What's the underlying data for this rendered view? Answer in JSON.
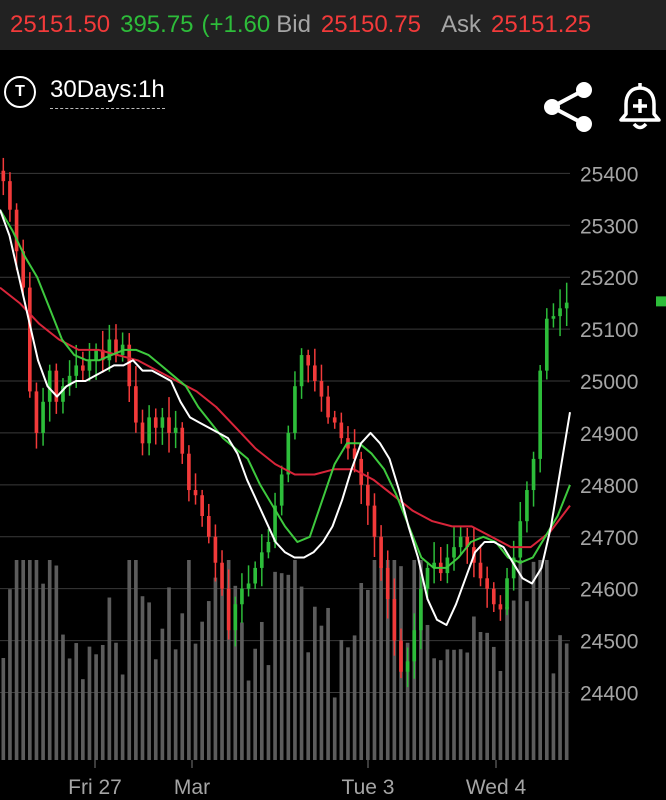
{
  "quote": {
    "last": "25151.50",
    "change": "395.75",
    "change_pct": "(+1.60",
    "bid_label": "Bid",
    "bid": "25150.75",
    "ask_label": "Ask",
    "ask": "25151.25"
  },
  "timeframe": {
    "icon_letter": "T",
    "label": "30Days:1h"
  },
  "icons": {
    "share": "share-icon",
    "alert": "bell-plus-icon"
  },
  "colors": {
    "up": "#2dbd3a",
    "down": "#f23a3a",
    "ma_fast": "#ffffff",
    "ma_mid": "#3ec93e",
    "ma_slow": "#d9253a",
    "volume": "#5c5c5c",
    "grid": "#3a3a3a"
  },
  "chart_data": {
    "type": "candlestick",
    "y_ticks": [
      24400,
      24500,
      24600,
      24700,
      24800,
      24900,
      25000,
      25100,
      25200,
      25300,
      25400
    ],
    "ylim": [
      24270,
      25445
    ],
    "x_ticks": [
      "Fri 27",
      "Mar",
      "Tue 3",
      "Wed 4"
    ],
    "grid": true,
    "last_price": 25151.5,
    "close": [
      25385,
      25330,
      25250,
      25180,
      24980,
      24900,
      24960,
      25020,
      24960,
      24990,
      25010,
      25030,
      25020,
      25040,
      25060,
      25040,
      25080,
      25050,
      25070,
      24990,
      24920,
      24880,
      24930,
      24910,
      24930,
      24900,
      24910,
      24860,
      24790,
      24780,
      24740,
      24700,
      24650,
      24600,
      24520,
      24570,
      24600,
      24610,
      24640,
      24670,
      24690,
      24760,
      24820,
      24900,
      24990,
      25050,
      25030,
      25000,
      24970,
      24930,
      24920,
      24890,
      24870,
      24850,
      24800,
      24760,
      24700,
      24640,
      24580,
      24500,
      24440,
      24460,
      24520,
      24600,
      24640,
      24650,
      24630,
      24660,
      24680,
      24700,
      24680,
      24650,
      24620,
      24600,
      24570,
      24560,
      24620,
      24660,
      24730,
      24790,
      24850,
      25020,
      25120,
      25125,
      25140,
      25151
    ],
    "ma_fast": [
      25330,
      25280,
      25200,
      25120,
      25040,
      24990,
      24970,
      24990,
      25000,
      25000,
      25010,
      25020,
      25030,
      25030,
      25040,
      25020,
      25020,
      25010,
      25000,
      24960,
      24930,
      24920,
      24910,
      24900,
      24890,
      24860,
      24810,
      24770,
      24730,
      24690,
      24670,
      24660,
      24660,
      24670,
      24690,
      24720,
      24770,
      24830,
      24880,
      24900,
      24880,
      24850,
      24790,
      24720,
      24660,
      24580,
      24540,
      24530,
      24570,
      24620,
      24670,
      24690,
      24690,
      24680,
      24650,
      24620,
      24610,
      24640,
      24720,
      24830,
      24940
    ],
    "ma_mid": [
      25330,
      25290,
      25240,
      25200,
      25140,
      25080,
      25050,
      25040,
      25040,
      25050,
      25060,
      25060,
      25050,
      25030,
      25010,
      24990,
      24950,
      24920,
      24890,
      24870,
      24850,
      24800,
      24760,
      24720,
      24690,
      24700,
      24770,
      24840,
      24880,
      24880,
      24860,
      24830,
      24780,
      24720,
      24660,
      24640,
      24640,
      24660,
      24690,
      24700,
      24690,
      24660,
      24650,
      24660,
      24700,
      24740,
      24800
    ],
    "ma_slow": [
      25180,
      25150,
      25110,
      25080,
      25060,
      25060,
      25050,
      25040,
      25020,
      25000,
      24980,
      24950,
      24910,
      24870,
      24840,
      24820,
      24820,
      24830,
      24830,
      24810,
      24780,
      24750,
      24730,
      24720,
      24720,
      24700,
      24680,
      24680,
      24710,
      24760
    ]
  }
}
